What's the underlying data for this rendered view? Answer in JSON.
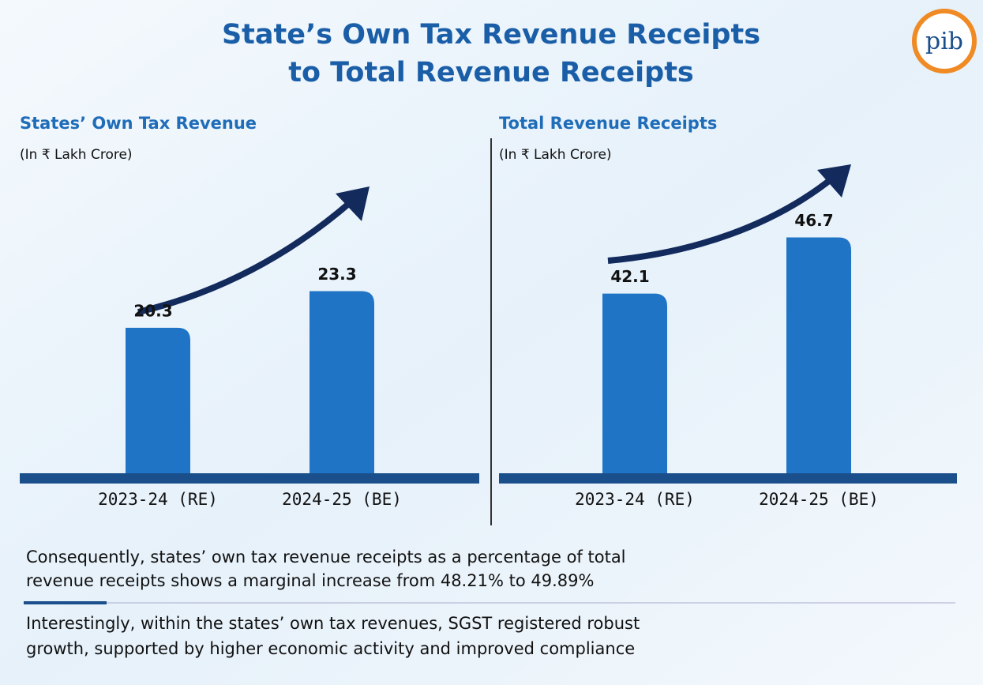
{
  "title_lines": [
    "State’s Own Tax Revenue Receipts",
    "to Total Revenue Receipts"
  ],
  "logo": "pib",
  "chart_data": [
    {
      "type": "bar",
      "title": "States’ Own Tax Revenue",
      "subtitle": "(In ₹ Lakh Crore)",
      "categories": [
        "2023-24 (RE)",
        "2024-25 (BE)"
      ],
      "values": [
        20.3,
        23.3
      ],
      "color": "#1f74c6",
      "ylim": [
        8,
        30
      ]
    },
    {
      "type": "bar",
      "title": "Total Revenue Receipts",
      "subtitle": "(In ₹ Lakh Crore)",
      "categories": [
        "2023-24 (RE)",
        "2024-25 (BE)"
      ],
      "values": [
        42.1,
        46.7
      ],
      "color": "#1f74c6",
      "ylim": [
        27,
        49
      ]
    }
  ],
  "notes": [
    [
      "Consequently, states’ own tax revenue receipts as a percentage of total",
      "revenue receipts shows a marginal increase from 48.21% to 49.89%"
    ],
    [
      "Interestingly, within the states’ own tax revenues, SGST registered robust",
      "growth, supported by higher economic activity and improved compliance"
    ]
  ]
}
